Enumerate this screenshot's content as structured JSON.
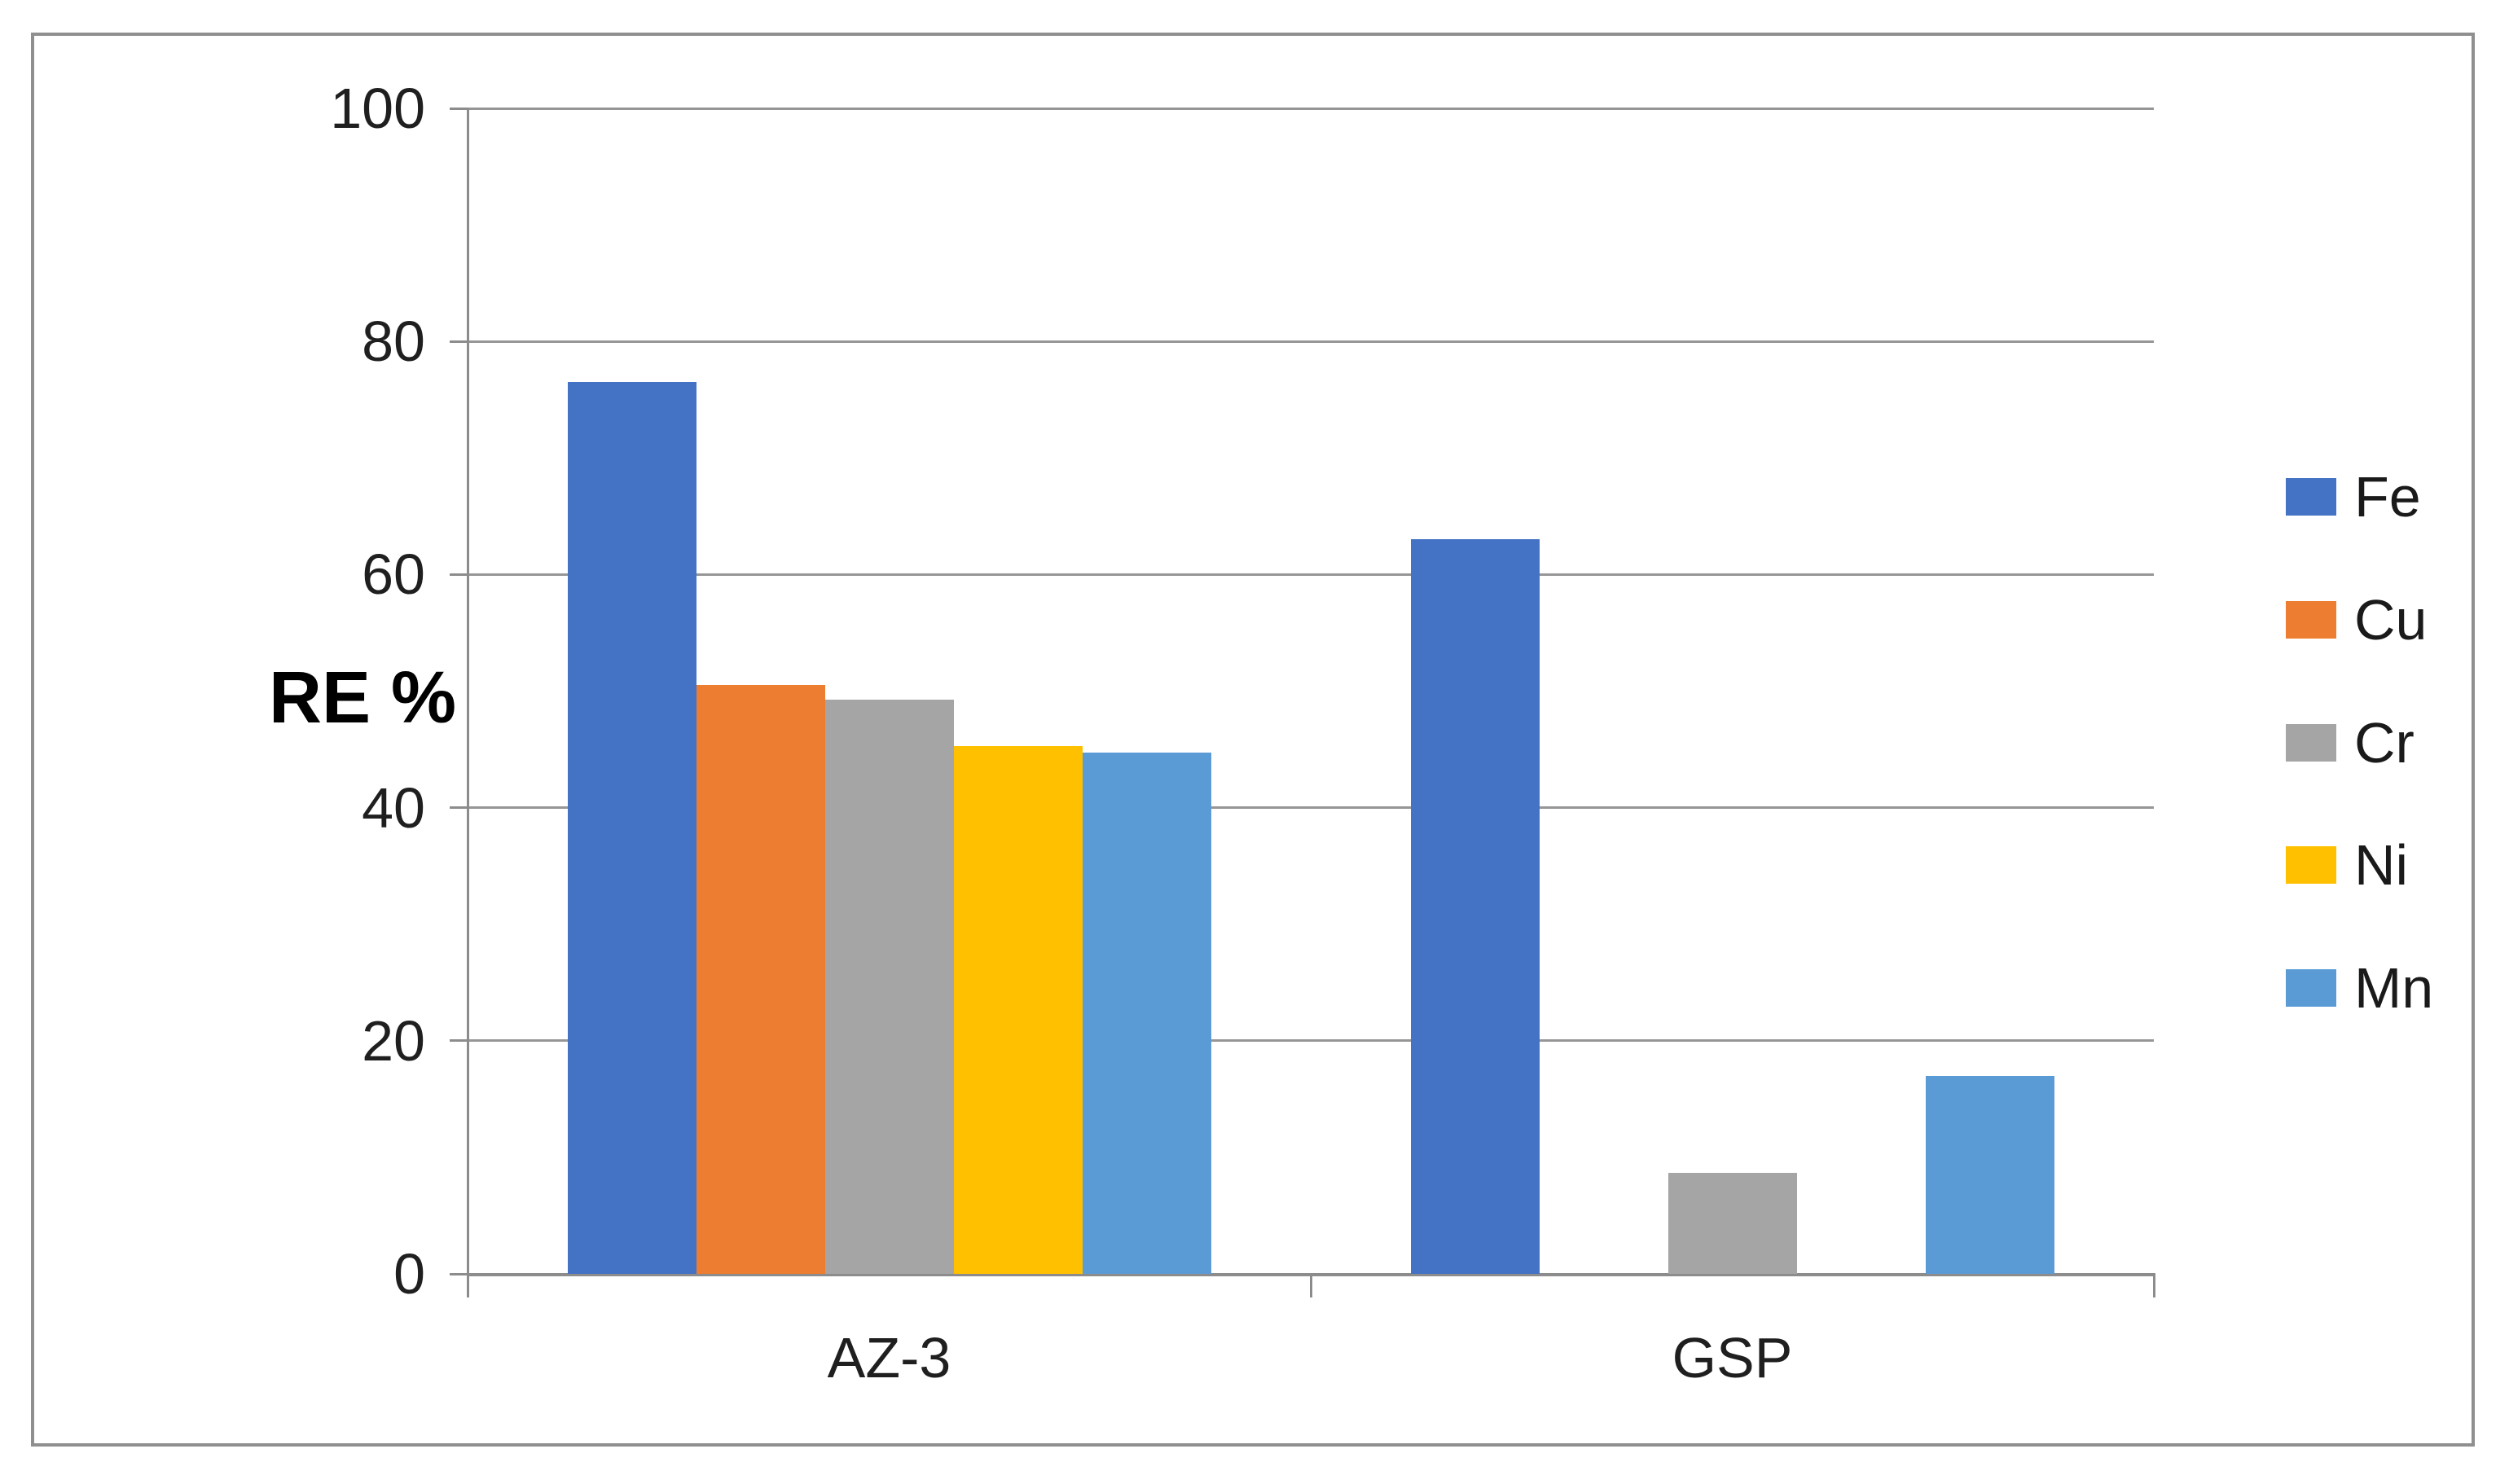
{
  "chart_data": {
    "type": "bar",
    "categories": [
      "AZ-3",
      "GSP"
    ],
    "series": [
      {
        "name": "Fe",
        "color": "#4472C4",
        "values": [
          76.5,
          63
        ]
      },
      {
        "name": "Cu",
        "color": "#ED7D31",
        "values": [
          50.5,
          0
        ]
      },
      {
        "name": "Cr",
        "color": "#A5A5A5",
        "values": [
          49.3,
          8.7
        ]
      },
      {
        "name": "Ni",
        "color": "#FFC000",
        "values": [
          45.3,
          0
        ]
      },
      {
        "name": "Mn",
        "color": "#5B9BD5",
        "values": [
          44.7,
          17
        ]
      }
    ],
    "title": "",
    "xlabel": "",
    "ylabel": "RE %",
    "ylim": [
      0,
      100
    ],
    "yticks": [
      0,
      20,
      40,
      60,
      80,
      100
    ],
    "grid": true,
    "legend_position": "right",
    "legend_entries": [
      "Fe",
      "Cu",
      "Cr",
      "Ni",
      "Mn"
    ]
  }
}
